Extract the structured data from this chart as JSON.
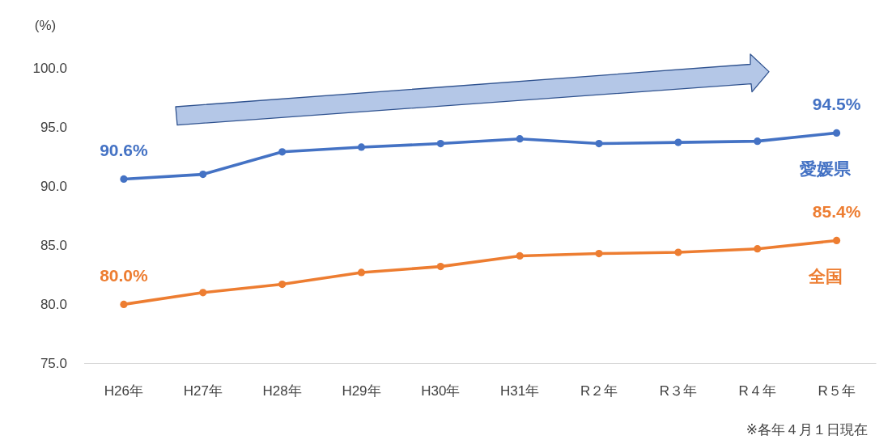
{
  "chart_data": {
    "type": "line",
    "ylabel": "(%)",
    "categories": [
      "H26年",
      "H27年",
      "H28年",
      "H29年",
      "H30年",
      "H31年",
      "R２年",
      "R３年",
      "R４年",
      "R５年"
    ],
    "series": [
      {
        "name": "愛媛県",
        "color": "#4472c4",
        "values": [
          90.6,
          91.0,
          92.9,
          93.3,
          93.6,
          94.0,
          93.6,
          93.7,
          93.8,
          94.5
        ],
        "value_labels": [
          "90.6%",
          null,
          null,
          null,
          null,
          null,
          null,
          null,
          null,
          "94.5%"
        ]
      },
      {
        "name": "全国",
        "color": "#ed7d31",
        "values": [
          80.0,
          81.0,
          81.7,
          82.7,
          83.2,
          84.1,
          84.3,
          84.4,
          84.7,
          85.4
        ],
        "value_labels": [
          "80.0%",
          null,
          null,
          null,
          null,
          null,
          null,
          null,
          null,
          "85.4%"
        ]
      }
    ],
    "ylim": [
      75,
      100
    ],
    "yticks": [
      {
        "value": 75,
        "label": "75.0"
      },
      {
        "value": 80,
        "label": "80.0"
      },
      {
        "value": 85,
        "label": "85.0"
      },
      {
        "value": 90,
        "label": "90.0"
      },
      {
        "value": 95,
        "label": "95.0"
      },
      {
        "value": 100,
        "label": "100.0"
      }
    ],
    "marker": "circle",
    "line_style": "solid",
    "annotations": [
      "※各年４月１日現在"
    ]
  }
}
